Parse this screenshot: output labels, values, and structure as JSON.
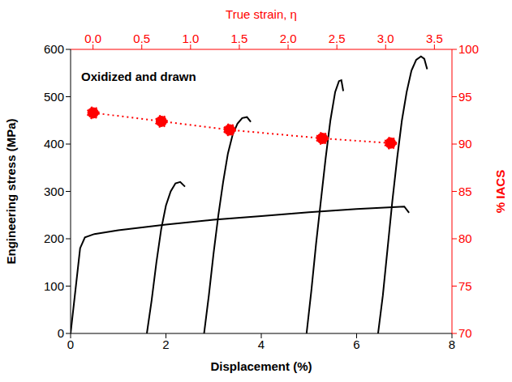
{
  "chart_data": {
    "type": "line",
    "xlabel": "Displacement (%)",
    "ylabel": "Engineering stress (MPa)",
    "x2label": "True strain, η",
    "y2label": "% IACS",
    "annotation": "Oxidized and drawn",
    "grid": false,
    "xlim": [
      0,
      8
    ],
    "xticks": [
      0,
      2,
      4,
      6,
      8
    ],
    "ylim": [
      0,
      600
    ],
    "yticks": [
      0,
      100,
      200,
      300,
      400,
      500,
      600
    ],
    "x2lim": [
      -0.23,
      3.68
    ],
    "x2ticks": [
      {
        "value": 0,
        "label": "0.0"
      },
      0.5,
      {
        "value": 1,
        "label": "1.0"
      },
      1.5,
      {
        "value": 2,
        "label": "2.0"
      },
      2.5,
      {
        "value": 3,
        "label": "3.0"
      },
      3.5
    ],
    "y2lim": [
      70,
      100
    ],
    "y2ticks": [
      70,
      75,
      80,
      85,
      90,
      95,
      100
    ],
    "series": [
      {
        "color": "#000000",
        "line_style": "solid",
        "x": [
          0,
          0.1,
          0.2,
          0.3,
          0.5,
          1,
          2,
          3,
          4,
          5,
          6,
          7,
          7.1
        ],
        "values": [
          0,
          90,
          180,
          203,
          210,
          218,
          230,
          240,
          248,
          256,
          263,
          268,
          255
        ]
      },
      {
        "color": "#000000",
        "line_style": "solid",
        "x": [
          1.6,
          1.7,
          1.8,
          1.9,
          2,
          2.1,
          2.2,
          2.3,
          2.4
        ],
        "values": [
          0,
          70,
          150,
          220,
          270,
          300,
          317,
          320,
          310
        ]
      },
      {
        "color": "#000000",
        "line_style": "solid",
        "x": [
          2.8,
          2.9,
          3.0,
          3.1,
          3.2,
          3.3,
          3.4,
          3.5,
          3.6,
          3.7,
          3.78
        ],
        "values": [
          0,
          80,
          170,
          250,
          320,
          380,
          420,
          443,
          455,
          457,
          447
        ]
      },
      {
        "color": "#000000",
        "line_style": "solid",
        "x": [
          4.95,
          5.05,
          5.15,
          5.25,
          5.35,
          5.45,
          5.55,
          5.63,
          5.68,
          5.72
        ],
        "values": [
          0,
          90,
          190,
          280,
          370,
          450,
          510,
          533,
          535,
          512
        ]
      },
      {
        "color": "#000000",
        "line_style": "solid",
        "x": [
          6.45,
          6.55,
          6.65,
          6.75,
          6.85,
          6.95,
          7.05,
          7.15,
          7.25,
          7.35,
          7.42,
          7.48
        ],
        "values": [
          0,
          80,
          180,
          280,
          370,
          450,
          510,
          555,
          578,
          585,
          580,
          558
        ]
      },
      {
        "color": "#ff0000",
        "axis": "y2",
        "marker": "circle",
        "line_style": "dotted",
        "x": [
          0,
          0.7,
          1.4,
          2.35,
          3.05
        ],
        "values": [
          93.3,
          92.4,
          91.5,
          90.6,
          90.1
        ]
      }
    ]
  }
}
